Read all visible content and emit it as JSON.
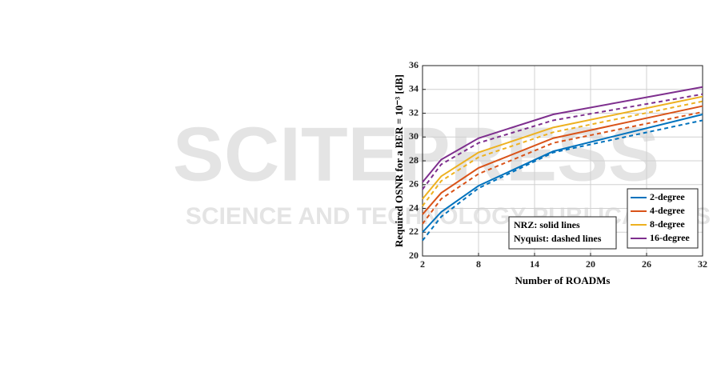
{
  "watermark": {
    "title": "SCITEPRESS",
    "subtitle": "SCIENCE AND TECHNOLOGY PUBLICATIONS"
  },
  "chart_data": {
    "type": "line",
    "x_label": "Number of ROADMs",
    "y_label": "Required OSNR for a BER = 10⁻³ [dB]",
    "x": [
      2,
      4,
      8,
      16,
      32
    ],
    "xlim": [
      2,
      32
    ],
    "xticks": [
      2,
      8,
      14,
      20,
      26,
      32
    ],
    "ylim": [
      20,
      36
    ],
    "yticks": [
      20,
      22,
      24,
      26,
      28,
      30,
      32,
      34,
      36
    ],
    "grid": true,
    "legend": "lower right",
    "annotations": [
      "NRZ: solid lines",
      "Nyquist: dashed lines"
    ],
    "series": [
      {
        "name": "2-degree",
        "color": "#0072bd",
        "values": [
          22.0,
          23.7,
          25.9,
          28.8,
          31.9
        ]
      },
      {
        "name": "4-degree",
        "color": "#d95319",
        "values": [
          23.5,
          25.3,
          27.4,
          29.9,
          32.6
        ]
      },
      {
        "name": "8-degree",
        "color": "#edb120",
        "values": [
          24.8,
          26.7,
          28.7,
          30.8,
          33.4
        ]
      },
      {
        "name": "16-degree",
        "color": "#7e2f8e",
        "values": [
          26.2,
          28.1,
          29.9,
          31.9,
          34.2
        ]
      },
      {
        "color": "#0072bd",
        "dashed": true,
        "values": [
          21.3,
          23.3,
          25.7,
          28.7,
          31.4
        ]
      },
      {
        "color": "#d95319",
        "dashed": true,
        "values": [
          22.7,
          24.8,
          26.9,
          29.5,
          32.1
        ]
      },
      {
        "color": "#edb120",
        "dashed": true,
        "values": [
          24.2,
          26.3,
          28.3,
          30.4,
          33.0
        ]
      },
      {
        "color": "#7e2f8e",
        "dashed": true,
        "values": [
          25.6,
          27.7,
          29.5,
          31.4,
          33.6
        ]
      }
    ]
  }
}
